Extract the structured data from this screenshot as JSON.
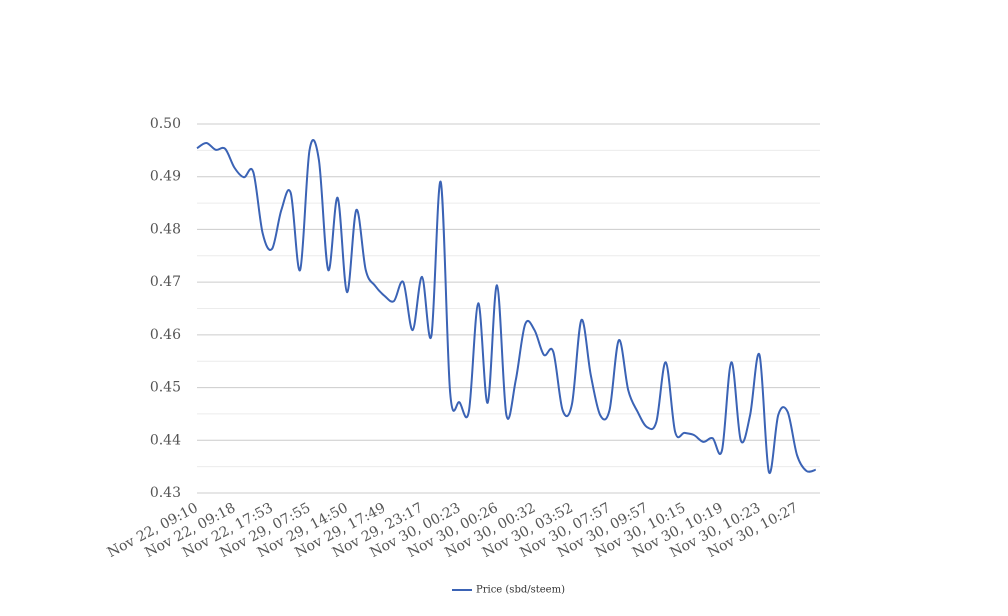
{
  "chart_data": {
    "type": "line",
    "categories": [
      "Nov 22, 09:10",
      null,
      null,
      null,
      "Nov 22, 09:18",
      null,
      null,
      null,
      "Nov 22, 17:53",
      null,
      null,
      null,
      "Nov 29, 07:55",
      null,
      null,
      null,
      "Nov 29, 14:50",
      null,
      null,
      null,
      "Nov 29, 17:49",
      null,
      null,
      null,
      "Nov 29, 23:17",
      null,
      null,
      null,
      "Nov 30, 00:23",
      null,
      null,
      null,
      "Nov 30, 00:26",
      null,
      null,
      null,
      "Nov 30, 00:32",
      null,
      null,
      null,
      "Nov 30, 03:52",
      null,
      null,
      null,
      "Nov 30, 07:57",
      null,
      null,
      null,
      "Nov 30, 09:57",
      null,
      null,
      null,
      "Nov 30, 10:15",
      null,
      null,
      null,
      "Nov 30, 10:19",
      null,
      null,
      null,
      "Nov 30, 10:23",
      null,
      null,
      null,
      "Nov 30, 10:27",
      null,
      null
    ],
    "series": [
      {
        "name": "Price (sbd/steem)",
        "color": "#3b63b5",
        "values": [
          0.4954,
          0.4964,
          0.4951,
          0.4953,
          0.4917,
          0.4899,
          0.4909,
          0.4793,
          0.4763,
          0.4837,
          0.4869,
          0.4723,
          0.495,
          0.4932,
          0.4723,
          0.486,
          0.4681,
          0.4837,
          0.4723,
          0.4693,
          0.4674,
          0.4664,
          0.47,
          0.4609,
          0.471,
          0.4598,
          0.489,
          0.4491,
          0.4472,
          0.4455,
          0.466,
          0.4471,
          0.4694,
          0.4448,
          0.4514,
          0.462,
          0.4609,
          0.4562,
          0.4568,
          0.4457,
          0.4469,
          0.4628,
          0.4524,
          0.4448,
          0.4457,
          0.459,
          0.4495,
          0.4454,
          0.4425,
          0.4435,
          0.4548,
          0.4416,
          0.4414,
          0.441,
          0.4397,
          0.4404,
          0.4381,
          0.4548,
          0.44,
          0.4448,
          0.4562,
          0.434,
          0.4448,
          0.4454,
          0.4372,
          0.4342,
          0.4344
        ]
      }
    ],
    "ylim": [
      0.43,
      0.5
    ],
    "yticks": [
      0.43,
      0.44,
      0.45,
      0.46,
      0.47,
      0.48,
      0.49,
      {
        "value": 0.5,
        "label": "0.50"
      }
    ],
    "minor_yticks": [
      0.435,
      0.445,
      0.455,
      0.465,
      0.475,
      0.485,
      0.495
    ],
    "grid": true,
    "legend": "bottom",
    "smooth": true
  }
}
